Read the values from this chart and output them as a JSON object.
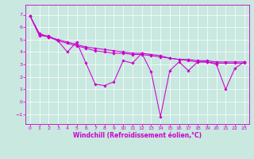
{
  "title": "",
  "xlabel": "Windchill (Refroidissement éolien,°C)",
  "ylabel": "",
  "background_color": "#c8e8e0",
  "grid_color": "#ffffff",
  "line_color": "#cc00cc",
  "xlim": [
    -0.5,
    23.5
  ],
  "ylim": [
    -1.8,
    7.8
  ],
  "xticks": [
    0,
    1,
    2,
    3,
    4,
    5,
    6,
    7,
    8,
    9,
    10,
    11,
    12,
    13,
    14,
    15,
    16,
    17,
    18,
    19,
    20,
    21,
    22,
    23
  ],
  "yticks": [
    -1,
    0,
    1,
    2,
    3,
    4,
    5,
    6,
    7
  ],
  "line1_x": [
    0,
    1,
    2,
    3,
    4,
    5,
    6,
    7,
    8,
    9,
    10,
    11,
    12,
    13,
    14,
    15,
    16,
    17,
    18,
    19,
    20,
    21,
    22,
    23
  ],
  "line1_y": [
    6.9,
    5.3,
    5.3,
    4.9,
    4.0,
    4.8,
    3.1,
    1.4,
    1.3,
    1.6,
    3.3,
    3.1,
    3.9,
    2.4,
    -1.2,
    2.5,
    3.2,
    2.5,
    3.2,
    3.2,
    3.0,
    1.0,
    2.7,
    3.2
  ],
  "line2_x": [
    0,
    1,
    2,
    3,
    4,
    5,
    6,
    7,
    8,
    9,
    10,
    11,
    12,
    13,
    14,
    15,
    16,
    17,
    18,
    19,
    20,
    21,
    22,
    23
  ],
  "line2_y": [
    6.9,
    5.5,
    5.2,
    5.0,
    4.8,
    4.6,
    4.4,
    4.3,
    4.2,
    4.1,
    4.0,
    3.9,
    3.9,
    3.8,
    3.7,
    3.5,
    3.4,
    3.4,
    3.3,
    3.3,
    3.2,
    3.2,
    3.2,
    3.2
  ],
  "line3_x": [
    0,
    1,
    2,
    3,
    4,
    5,
    6,
    7,
    8,
    9,
    10,
    11,
    12,
    13,
    14,
    15,
    16,
    17,
    18,
    19,
    20,
    21,
    22,
    23
  ],
  "line3_y": [
    6.9,
    5.4,
    5.2,
    4.9,
    4.7,
    4.5,
    4.3,
    4.1,
    4.0,
    3.9,
    3.9,
    3.8,
    3.8,
    3.7,
    3.6,
    3.5,
    3.4,
    3.3,
    3.2,
    3.2,
    3.1,
    3.1,
    3.1,
    3.1
  ],
  "tick_fontsize": 4.5,
  "xlabel_fontsize": 5.5
}
